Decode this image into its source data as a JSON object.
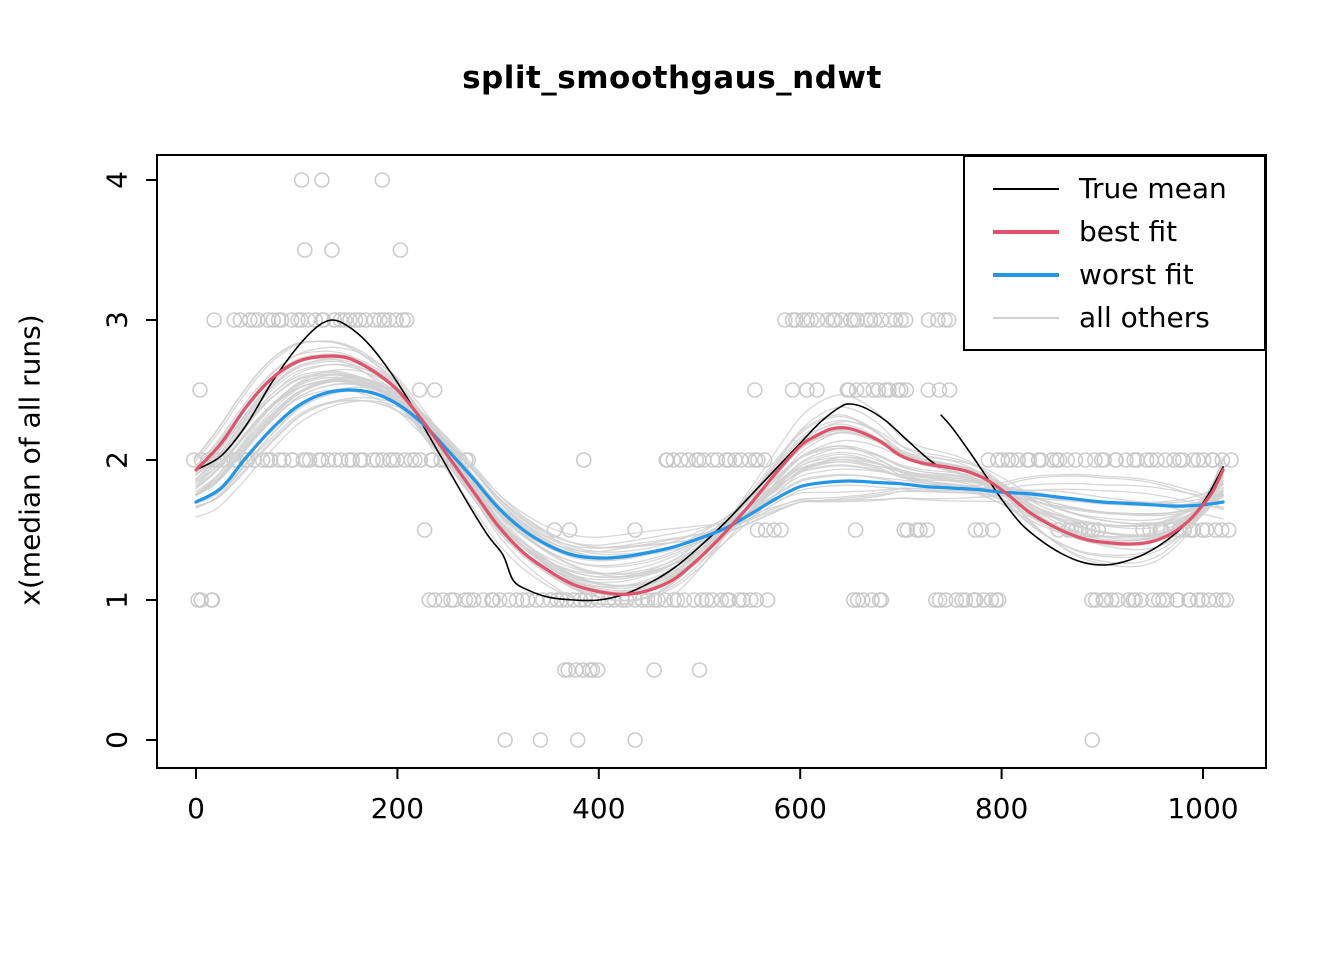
{
  "chart_data": {
    "type": "line",
    "title": "split_smoothgaus_ndwt",
    "xlabel": "",
    "ylabel": "x(median of all runs)",
    "xlim": [
      0,
      1030
    ],
    "ylim": [
      0,
      4
    ],
    "x_ticks": [
      0,
      200,
      400,
      600,
      800,
      1000
    ],
    "y_ticks": [
      0,
      1,
      2,
      3,
      4
    ],
    "grid": false,
    "legend_position": "top-right",
    "series": [
      {
        "name": "True mean",
        "color": "#000000",
        "width": 1.6,
        "segments": [
          [
            [
              0,
              1.93
            ],
            [
              25,
              2.03
            ],
            [
              50,
              2.25
            ],
            [
              75,
              2.55
            ],
            [
              100,
              2.8
            ],
            [
              120,
              2.95
            ],
            [
              135,
              3.0
            ],
            [
              150,
              2.96
            ],
            [
              170,
              2.84
            ],
            [
              190,
              2.66
            ],
            [
              210,
              2.44
            ],
            [
              230,
              2.19
            ],
            [
              250,
              1.94
            ],
            [
              270,
              1.69
            ],
            [
              290,
              1.46
            ],
            [
              305,
              1.32
            ],
            [
              315,
              1.14
            ],
            [
              330,
              1.07
            ],
            [
              350,
              1.02
            ],
            [
              375,
              1.0
            ],
            [
              400,
              1.0
            ],
            [
              425,
              1.04
            ],
            [
              450,
              1.12
            ],
            [
              475,
              1.23
            ],
            [
              500,
              1.38
            ],
            [
              525,
              1.55
            ],
            [
              550,
              1.74
            ],
            [
              575,
              1.93
            ],
            [
              600,
              2.12
            ],
            [
              620,
              2.27
            ],
            [
              640,
              2.38
            ],
            [
              650,
              2.4
            ],
            [
              665,
              2.37
            ],
            [
              685,
              2.28
            ],
            [
              705,
              2.15
            ],
            [
              725,
              2.02
            ],
            [
              738,
              1.95
            ]
          ],
          [
            [
              740,
              2.32
            ],
            [
              752,
              2.22
            ],
            [
              768,
              2.06
            ],
            [
              785,
              1.88
            ],
            [
              802,
              1.7
            ],
            [
              820,
              1.54
            ],
            [
              840,
              1.42
            ],
            [
              860,
              1.33
            ],
            [
              880,
              1.27
            ],
            [
              900,
              1.25
            ],
            [
              920,
              1.27
            ],
            [
              945,
              1.34
            ],
            [
              970,
              1.46
            ],
            [
              990,
              1.6
            ],
            [
              1005,
              1.75
            ],
            [
              1020,
              1.95
            ]
          ]
        ]
      },
      {
        "name": "best fit",
        "color": "#DF536B",
        "width": 3.2,
        "segments": [
          [
            [
              0,
              1.93
            ],
            [
              25,
              2.12
            ],
            [
              50,
              2.38
            ],
            [
              75,
              2.58
            ],
            [
              100,
              2.7
            ],
            [
              125,
              2.74
            ],
            [
              150,
              2.73
            ],
            [
              175,
              2.64
            ],
            [
              200,
              2.5
            ],
            [
              225,
              2.28
            ],
            [
              250,
              2.03
            ],
            [
              275,
              1.78
            ],
            [
              300,
              1.53
            ],
            [
              325,
              1.34
            ],
            [
              350,
              1.21
            ],
            [
              375,
              1.11
            ],
            [
              400,
              1.06
            ],
            [
              425,
              1.04
            ],
            [
              450,
              1.07
            ],
            [
              475,
              1.15
            ],
            [
              500,
              1.3
            ],
            [
              525,
              1.48
            ],
            [
              550,
              1.68
            ],
            [
              575,
              1.9
            ],
            [
              600,
              2.1
            ],
            [
              615,
              2.17
            ],
            [
              630,
              2.22
            ],
            [
              645,
              2.23
            ],
            [
              660,
              2.2
            ],
            [
              680,
              2.13
            ],
            [
              700,
              2.03
            ],
            [
              720,
              1.98
            ],
            [
              745,
              1.95
            ],
            [
              765,
              1.92
            ],
            [
              785,
              1.86
            ],
            [
              805,
              1.76
            ],
            [
              825,
              1.64
            ],
            [
              845,
              1.55
            ],
            [
              865,
              1.48
            ],
            [
              885,
              1.43
            ],
            [
              905,
              1.41
            ],
            [
              925,
              1.4
            ],
            [
              945,
              1.41
            ],
            [
              965,
              1.46
            ],
            [
              985,
              1.56
            ],
            [
              1000,
              1.68
            ],
            [
              1010,
              1.78
            ],
            [
              1020,
              1.93
            ]
          ]
        ]
      },
      {
        "name": "worst fit",
        "color": "#2297E6",
        "width": 3.2,
        "segments": [
          [
            [
              0,
              1.7
            ],
            [
              25,
              1.8
            ],
            [
              50,
              2.02
            ],
            [
              75,
              2.22
            ],
            [
              100,
              2.38
            ],
            [
              125,
              2.47
            ],
            [
              150,
              2.5
            ],
            [
              175,
              2.48
            ],
            [
              200,
              2.4
            ],
            [
              225,
              2.26
            ],
            [
              250,
              2.07
            ],
            [
              275,
              1.87
            ],
            [
              300,
              1.66
            ],
            [
              325,
              1.5
            ],
            [
              350,
              1.39
            ],
            [
              375,
              1.32
            ],
            [
              400,
              1.3
            ],
            [
              425,
              1.31
            ],
            [
              450,
              1.34
            ],
            [
              475,
              1.38
            ],
            [
              500,
              1.44
            ],
            [
              525,
              1.51
            ],
            [
              550,
              1.61
            ],
            [
              575,
              1.72
            ],
            [
              600,
              1.81
            ],
            [
              625,
              1.84
            ],
            [
              650,
              1.85
            ],
            [
              675,
              1.84
            ],
            [
              700,
              1.83
            ],
            [
              725,
              1.81
            ],
            [
              750,
              1.8
            ],
            [
              775,
              1.79
            ],
            [
              800,
              1.77
            ],
            [
              825,
              1.76
            ],
            [
              850,
              1.74
            ],
            [
              875,
              1.72
            ],
            [
              900,
              1.7
            ],
            [
              925,
              1.69
            ],
            [
              950,
              1.68
            ],
            [
              975,
              1.67
            ],
            [
              1000,
              1.68
            ],
            [
              1020,
              1.7
            ]
          ]
        ]
      }
    ],
    "others": {
      "name": "all others",
      "color": "#D0D0D0",
      "width": 1.3,
      "count": 38,
      "description": "band of gray smoother fit curves spanning between/around best and worst fits"
    },
    "scatter": {
      "marker": "open-circle",
      "color": "#C6C6C6",
      "radius_px": 7,
      "rows": [
        {
          "y": 4,
          "singles": [
            105,
            125,
            185
          ],
          "ranges": []
        },
        {
          "y": 3.5,
          "singles": [
            108,
            135,
            203
          ],
          "ranges": []
        },
        {
          "y": 3,
          "singles": [
            18,
            38,
            44
          ],
          "ranges": [
            [
              52,
              212,
              28
            ],
            [
              585,
              705,
              22
            ],
            [
              728,
              748,
              4
            ]
          ]
        },
        {
          "y": 2.5,
          "singles": [
            4,
            222,
            237,
            555
          ],
          "ranges": [
            [
              595,
              615,
              3
            ],
            [
              645,
              707,
              11
            ],
            [
              729,
              747,
              3
            ]
          ]
        },
        {
          "y": 2,
          "singles": [
            385
          ],
          "ranges": [
            [
              0,
              272,
              48
            ],
            [
              465,
              565,
              18
            ],
            [
              788,
              872,
              15
            ],
            [
              884,
              1008,
              20
            ],
            [
              1012,
              1026,
              3
            ]
          ]
        },
        {
          "y": 1.5,
          "singles": [
            227,
            356,
            371,
            436,
            655
          ],
          "ranges": [
            [
              560,
              580,
              4
            ],
            [
              703,
              727,
              5
            ],
            [
              773,
              790,
              3
            ],
            [
              858,
              898,
              8
            ],
            [
              942,
              1024,
              14
            ]
          ]
        },
        {
          "y": 1,
          "singles": [],
          "ranges": [
            [
              2,
              18,
              4
            ],
            [
              232,
              565,
              52
            ],
            [
              653,
              682,
              6
            ],
            [
              735,
              800,
              12
            ],
            [
              888,
              1025,
              24
            ]
          ]
        },
        {
          "y": 0.5,
          "singles": [
            455,
            500
          ],
          "ranges": [
            [
              365,
              400,
              7
            ]
          ]
        },
        {
          "y": 0,
          "singles": [
            307,
            342,
            379,
            436,
            890
          ],
          "ranges": []
        }
      ]
    }
  }
}
